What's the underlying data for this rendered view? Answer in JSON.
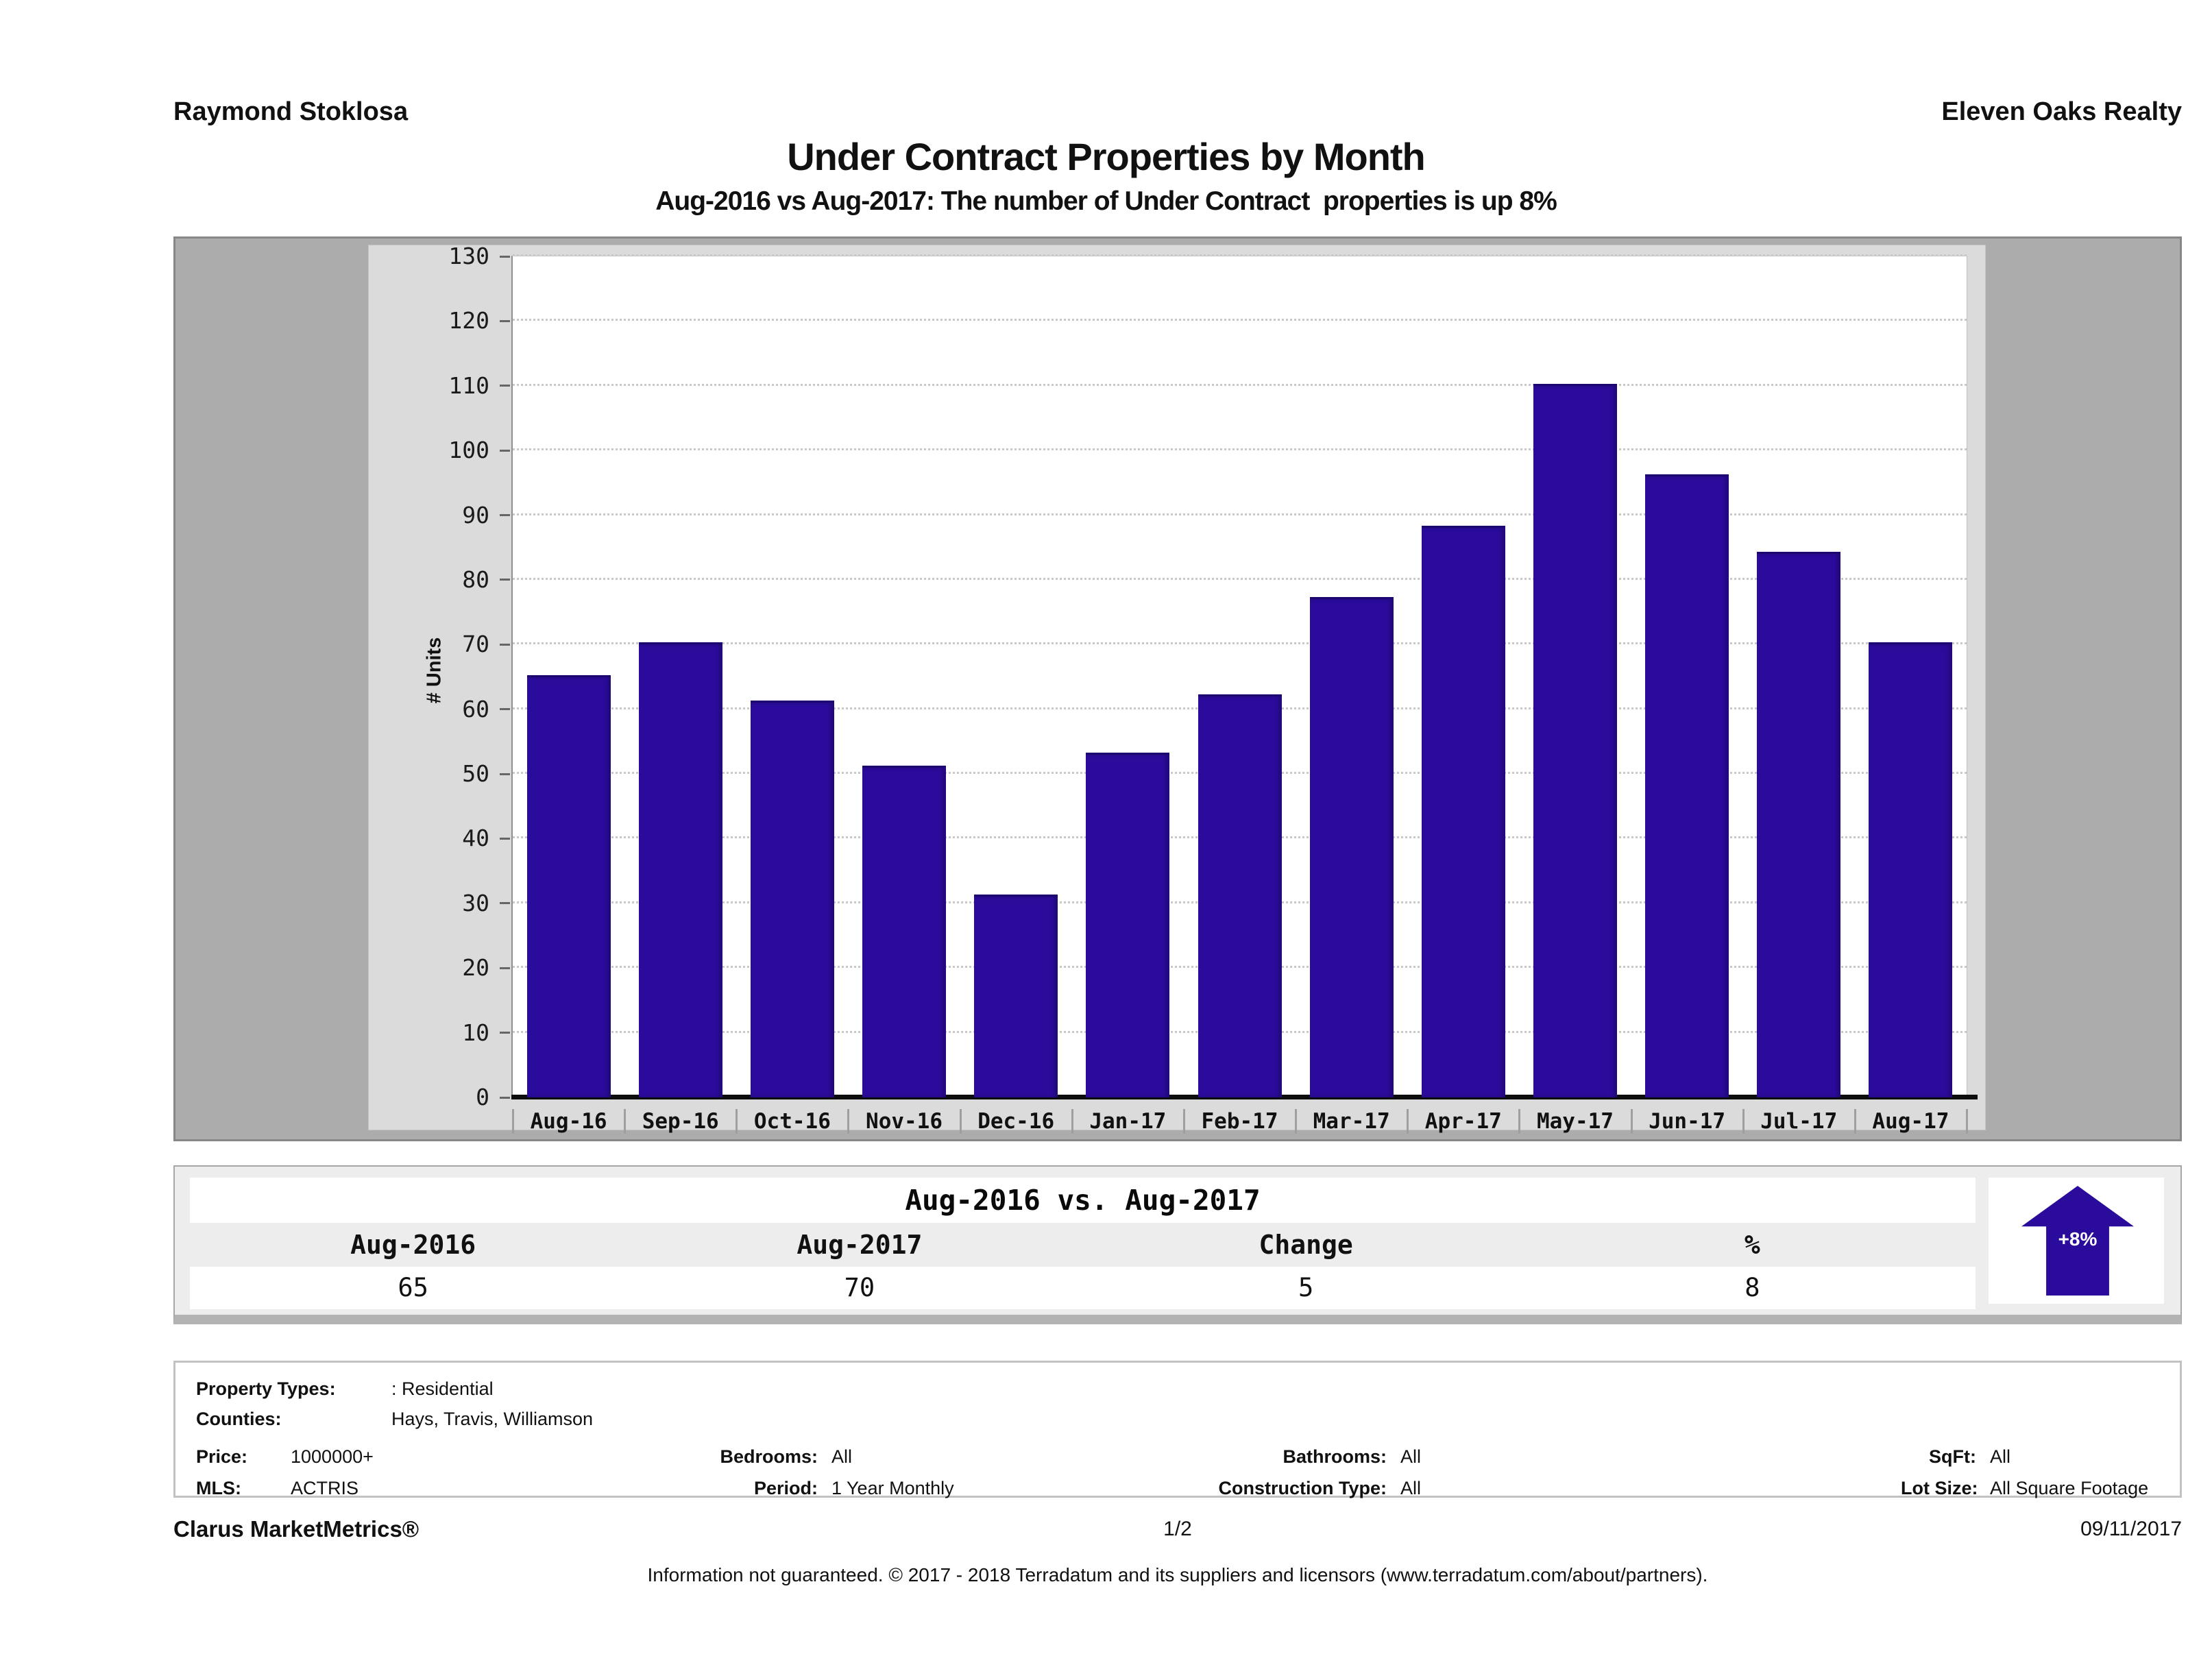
{
  "header": {
    "agent": "Raymond Stoklosa",
    "company": "Eleven Oaks Realty",
    "title": "Under Contract Properties by Month",
    "subtitle": "Aug-2016 vs Aug-2017: The number of Under Contract  properties is up 8%"
  },
  "chart_data": {
    "type": "bar",
    "title": "Under Contract Properties by Month",
    "categories": [
      "Aug-16",
      "Sep-16",
      "Oct-16",
      "Nov-16",
      "Dec-16",
      "Jan-17",
      "Feb-17",
      "Mar-17",
      "Apr-17",
      "May-17",
      "Jun-17",
      "Jul-17",
      "Aug-17"
    ],
    "values": [
      65,
      70,
      61,
      51,
      31,
      53,
      62,
      77,
      88,
      110,
      96,
      84,
      70
    ],
    "xlabel": "",
    "ylabel": "# Units",
    "ylim": [
      0,
      130
    ],
    "ytick_step": 10,
    "grid": true,
    "legend_position": "none",
    "bar_color": "#2b0b9b"
  },
  "comparison": {
    "title": "Aug-2016 vs. Aug-2017",
    "columns": [
      "Aug-2016",
      "Aug-2017",
      "Change",
      "%"
    ],
    "values": [
      "65",
      "70",
      "5",
      "8"
    ],
    "badge": "+8%",
    "badge_color": "#2b0b9b"
  },
  "details": {
    "rows": [
      {
        "label": "Property Types:",
        "value": ": Residential"
      },
      {
        "label": "Counties:",
        "value": "Hays, Travis, Williamson"
      }
    ],
    "grid": [
      [
        {
          "label": "Price:",
          "value": "1000000+"
        },
        {
          "label": "Bedrooms:",
          "value": "All"
        },
        {
          "label": "Bathrooms:",
          "value": "All"
        },
        {
          "label": "SqFt:",
          "value": "All"
        }
      ],
      [
        {
          "label": "MLS:",
          "value": "ACTRIS"
        },
        {
          "label": "Period:",
          "value": "1 Year Monthly"
        },
        {
          "label": "Construction Type:",
          "value": "All"
        },
        {
          "label": "Lot Size:",
          "value": "All Square Footage"
        }
      ]
    ]
  },
  "footer": {
    "brand": "Clarus MarketMetrics®",
    "page": "1/2",
    "date": "09/11/2017",
    "disclaimer": "Information not guaranteed. © 2017 - 2018 Terradatum and its suppliers and licensors (www.terradatum.com/about/partners)."
  }
}
